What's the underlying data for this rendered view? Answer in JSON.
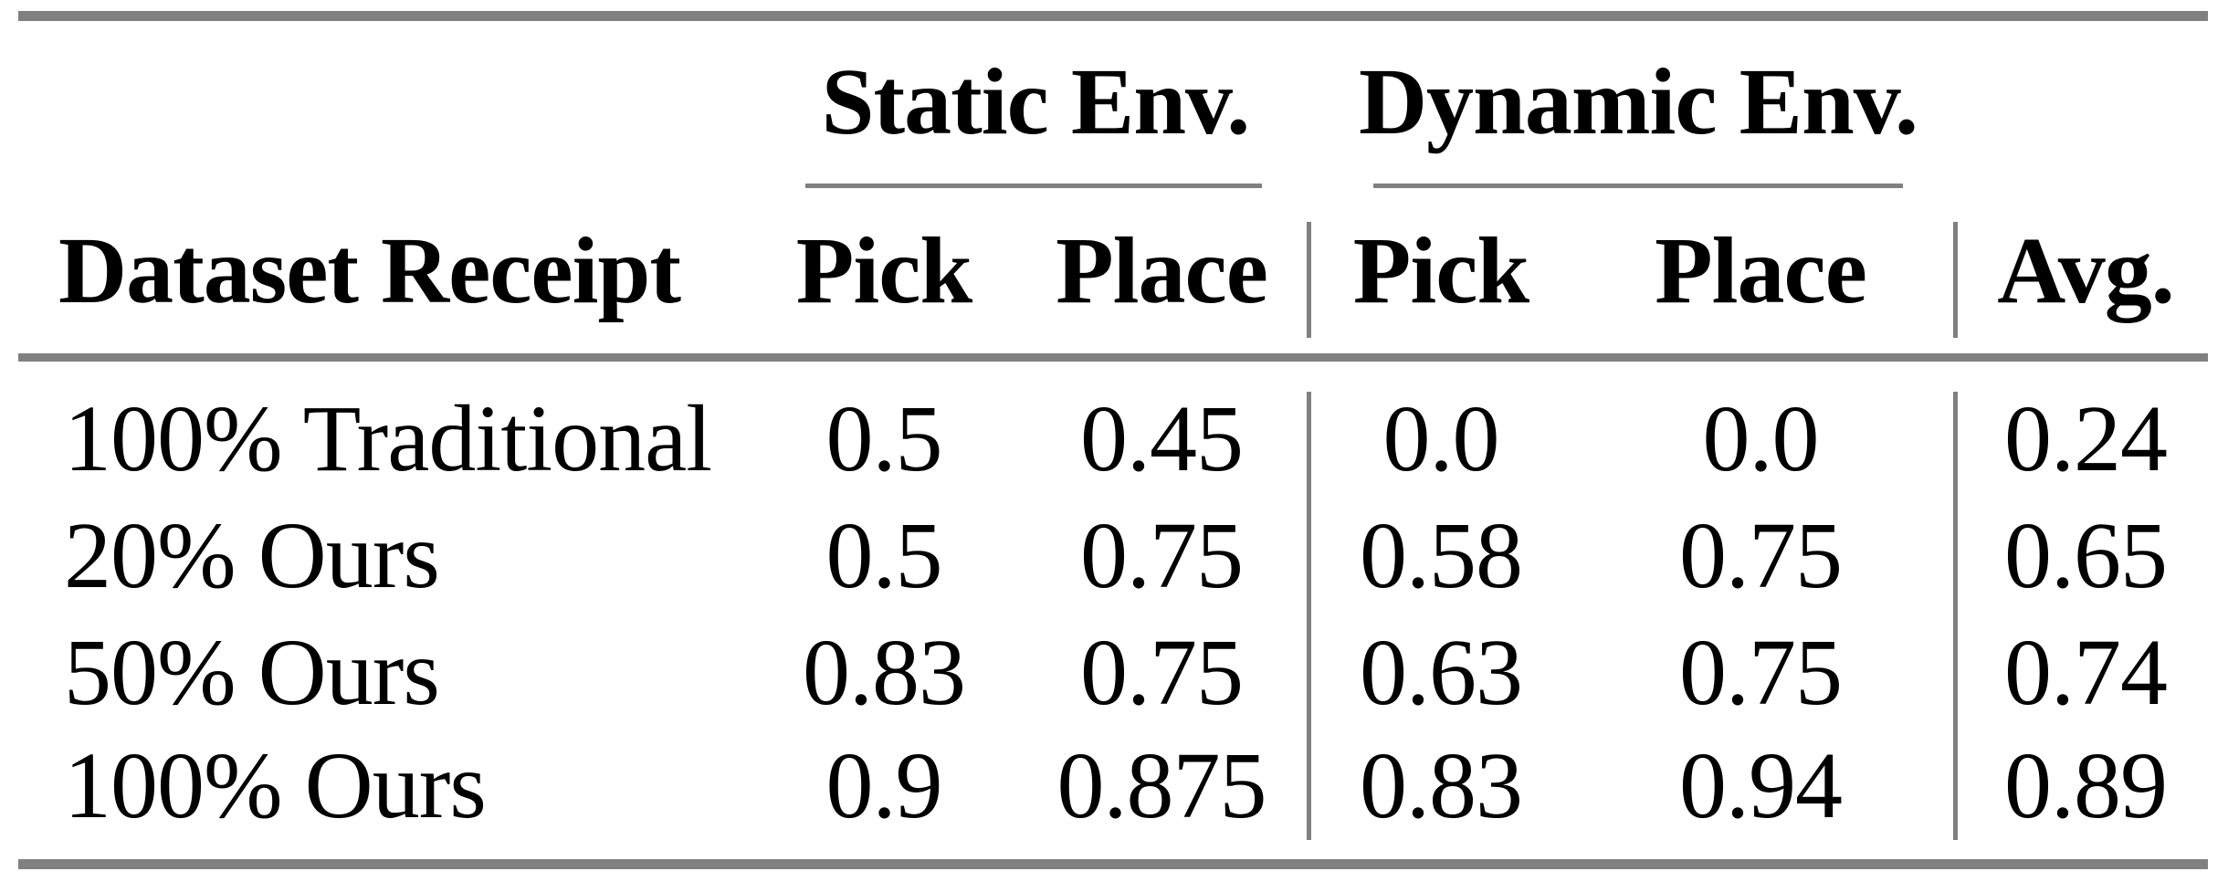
{
  "colors": {
    "rule_gray": "#808080",
    "text_black": "#000000",
    "background": "#ffffff"
  },
  "table": {
    "group_headers": [
      {
        "label": "Static Env."
      },
      {
        "label": "Dynamic Env."
      }
    ],
    "columns": {
      "dataset_receipt": "Dataset Receipt",
      "static_pick": "Pick",
      "static_place": "Place",
      "dynamic_pick": "Pick",
      "dynamic_place": "Place",
      "avg": "Avg."
    },
    "rows": [
      {
        "label": "100% Traditional",
        "values": [
          "0.5",
          "0.45",
          "0.0",
          "0.0",
          "0.24"
        ]
      },
      {
        "label": "20% Ours",
        "values": [
          "0.5",
          "0.75",
          "0.58",
          "0.75",
          "0.65"
        ]
      },
      {
        "label": "50% Ours",
        "values": [
          "0.83",
          "0.75",
          "0.63",
          "0.75",
          "0.74"
        ]
      },
      {
        "label": "100% Ours",
        "values": [
          "0.9",
          "0.875",
          "0.83",
          "0.94",
          "0.89"
        ]
      }
    ]
  },
  "chart_data": {
    "type": "table",
    "title": "",
    "column_groups": [
      "Static Env.",
      "Dynamic Env."
    ],
    "columns": [
      "Dataset Receipt",
      "Static Env. Pick",
      "Static Env. Place",
      "Dynamic Env. Pick",
      "Dynamic Env. Place",
      "Avg."
    ],
    "rows": [
      [
        "100% Traditional",
        0.5,
        0.45,
        0.0,
        0.0,
        0.24
      ],
      [
        "20% Ours",
        0.5,
        0.75,
        0.58,
        0.75,
        0.65
      ],
      [
        "50% Ours",
        0.83,
        0.75,
        0.63,
        0.75,
        0.74
      ],
      [
        "100% Ours",
        0.9,
        0.875,
        0.83,
        0.94,
        0.89
      ]
    ]
  }
}
